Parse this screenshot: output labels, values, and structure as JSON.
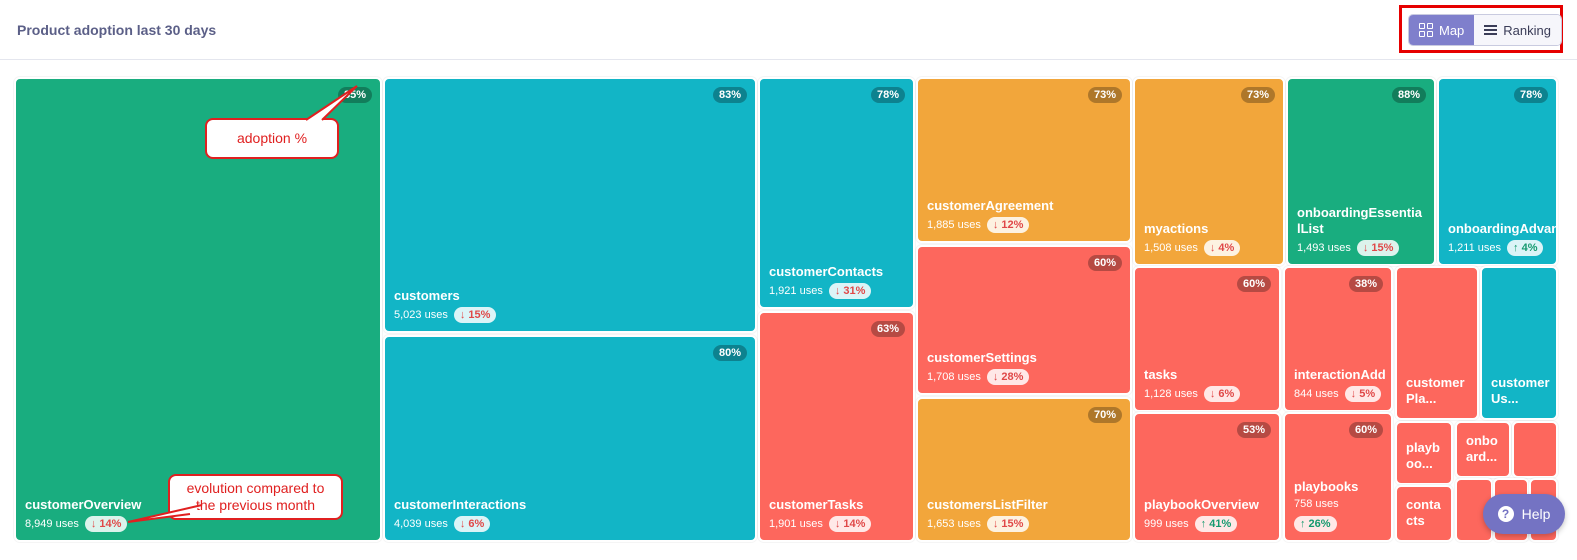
{
  "header": {
    "title": "Product adoption last 30 days",
    "map_label": "Map",
    "ranking_label": "Ranking",
    "active_view": "Map"
  },
  "colors": {
    "green": "#19ad7f",
    "teal": "#12b5c6",
    "orange": "#f2a63b",
    "red": "#fd675d",
    "annotation": "#e02020",
    "toggle_active": "#7f7fcc"
  },
  "annotations": {
    "adoption": "adoption %",
    "evolution": "evolution compared to the previous month"
  },
  "help": {
    "label": "Help",
    "icon": "question-icon"
  },
  "tiles": [
    {
      "name": "customerOverview",
      "pct": "85%",
      "uses": "8,949 uses",
      "delta": "↓ 14%",
      "dir": "down",
      "color": "green"
    },
    {
      "name": "customers",
      "pct": "83%",
      "uses": "5,023 uses",
      "delta": "↓ 15%",
      "dir": "down",
      "color": "teal"
    },
    {
      "name": "customerInteractions",
      "pct": "80%",
      "uses": "4,039 uses",
      "delta": "↓ 6%",
      "dir": "down",
      "color": "teal"
    },
    {
      "name": "customerContacts",
      "pct": "78%",
      "uses": "1,921 uses",
      "delta": "↓ 31%",
      "dir": "down",
      "color": "teal"
    },
    {
      "name": "customerTasks",
      "pct": "63%",
      "uses": "1,901 uses",
      "delta": "↓ 14%",
      "dir": "down",
      "color": "red"
    },
    {
      "name": "customerAgreement",
      "pct": "73%",
      "uses": "1,885 uses",
      "delta": "↓ 12%",
      "dir": "down",
      "color": "orange"
    },
    {
      "name": "customerSettings",
      "pct": "60%",
      "uses": "1,708 uses",
      "delta": "↓ 28%",
      "dir": "down",
      "color": "red"
    },
    {
      "name": "customersListFilter",
      "pct": "70%",
      "uses": "1,653 uses",
      "delta": "↓ 15%",
      "dir": "down",
      "color": "orange"
    },
    {
      "name": "myactions",
      "pct": "73%",
      "uses": "1,508 uses",
      "delta": "↓ 4%",
      "dir": "down",
      "color": "orange"
    },
    {
      "name": "onboardingEssentialList",
      "pct": "88%",
      "uses": "1,493 uses",
      "delta": "↓ 15%",
      "dir": "down",
      "color": "green"
    },
    {
      "name": "onboardingAdvancedList",
      "pct": "78%",
      "uses": "1,211 uses",
      "delta": "↑ 4%",
      "dir": "up",
      "color": "teal"
    },
    {
      "name": "tasks",
      "pct": "60%",
      "uses": "1,128 uses",
      "delta": "↓ 6%",
      "dir": "down",
      "color": "red"
    },
    {
      "name": "interactionAdd",
      "pct": "38%",
      "uses": "844 uses",
      "delta": "↓ 5%",
      "dir": "down",
      "color": "red"
    },
    {
      "name": "playbookOverview",
      "pct": "53%",
      "uses": "999 uses",
      "delta": "↑ 41%",
      "dir": "up",
      "color": "red"
    },
    {
      "name": "playbooks",
      "pct": "60%",
      "uses": "758 uses",
      "delta": "↑ 26%",
      "dir": "up",
      "color": "red"
    },
    {
      "name": "customer Pla...",
      "color": "red"
    },
    {
      "name": "customer Us...",
      "color": "teal"
    },
    {
      "name": "playb oo...",
      "color": "red"
    },
    {
      "name": "onbo ard...",
      "color": "red"
    },
    {
      "name": "",
      "color": "red"
    },
    {
      "name": "conta cts",
      "color": "red"
    },
    {
      "name": "",
      "color": "red"
    },
    {
      "name": "",
      "color": "red"
    },
    {
      "name": "",
      "color": "red"
    }
  ]
}
